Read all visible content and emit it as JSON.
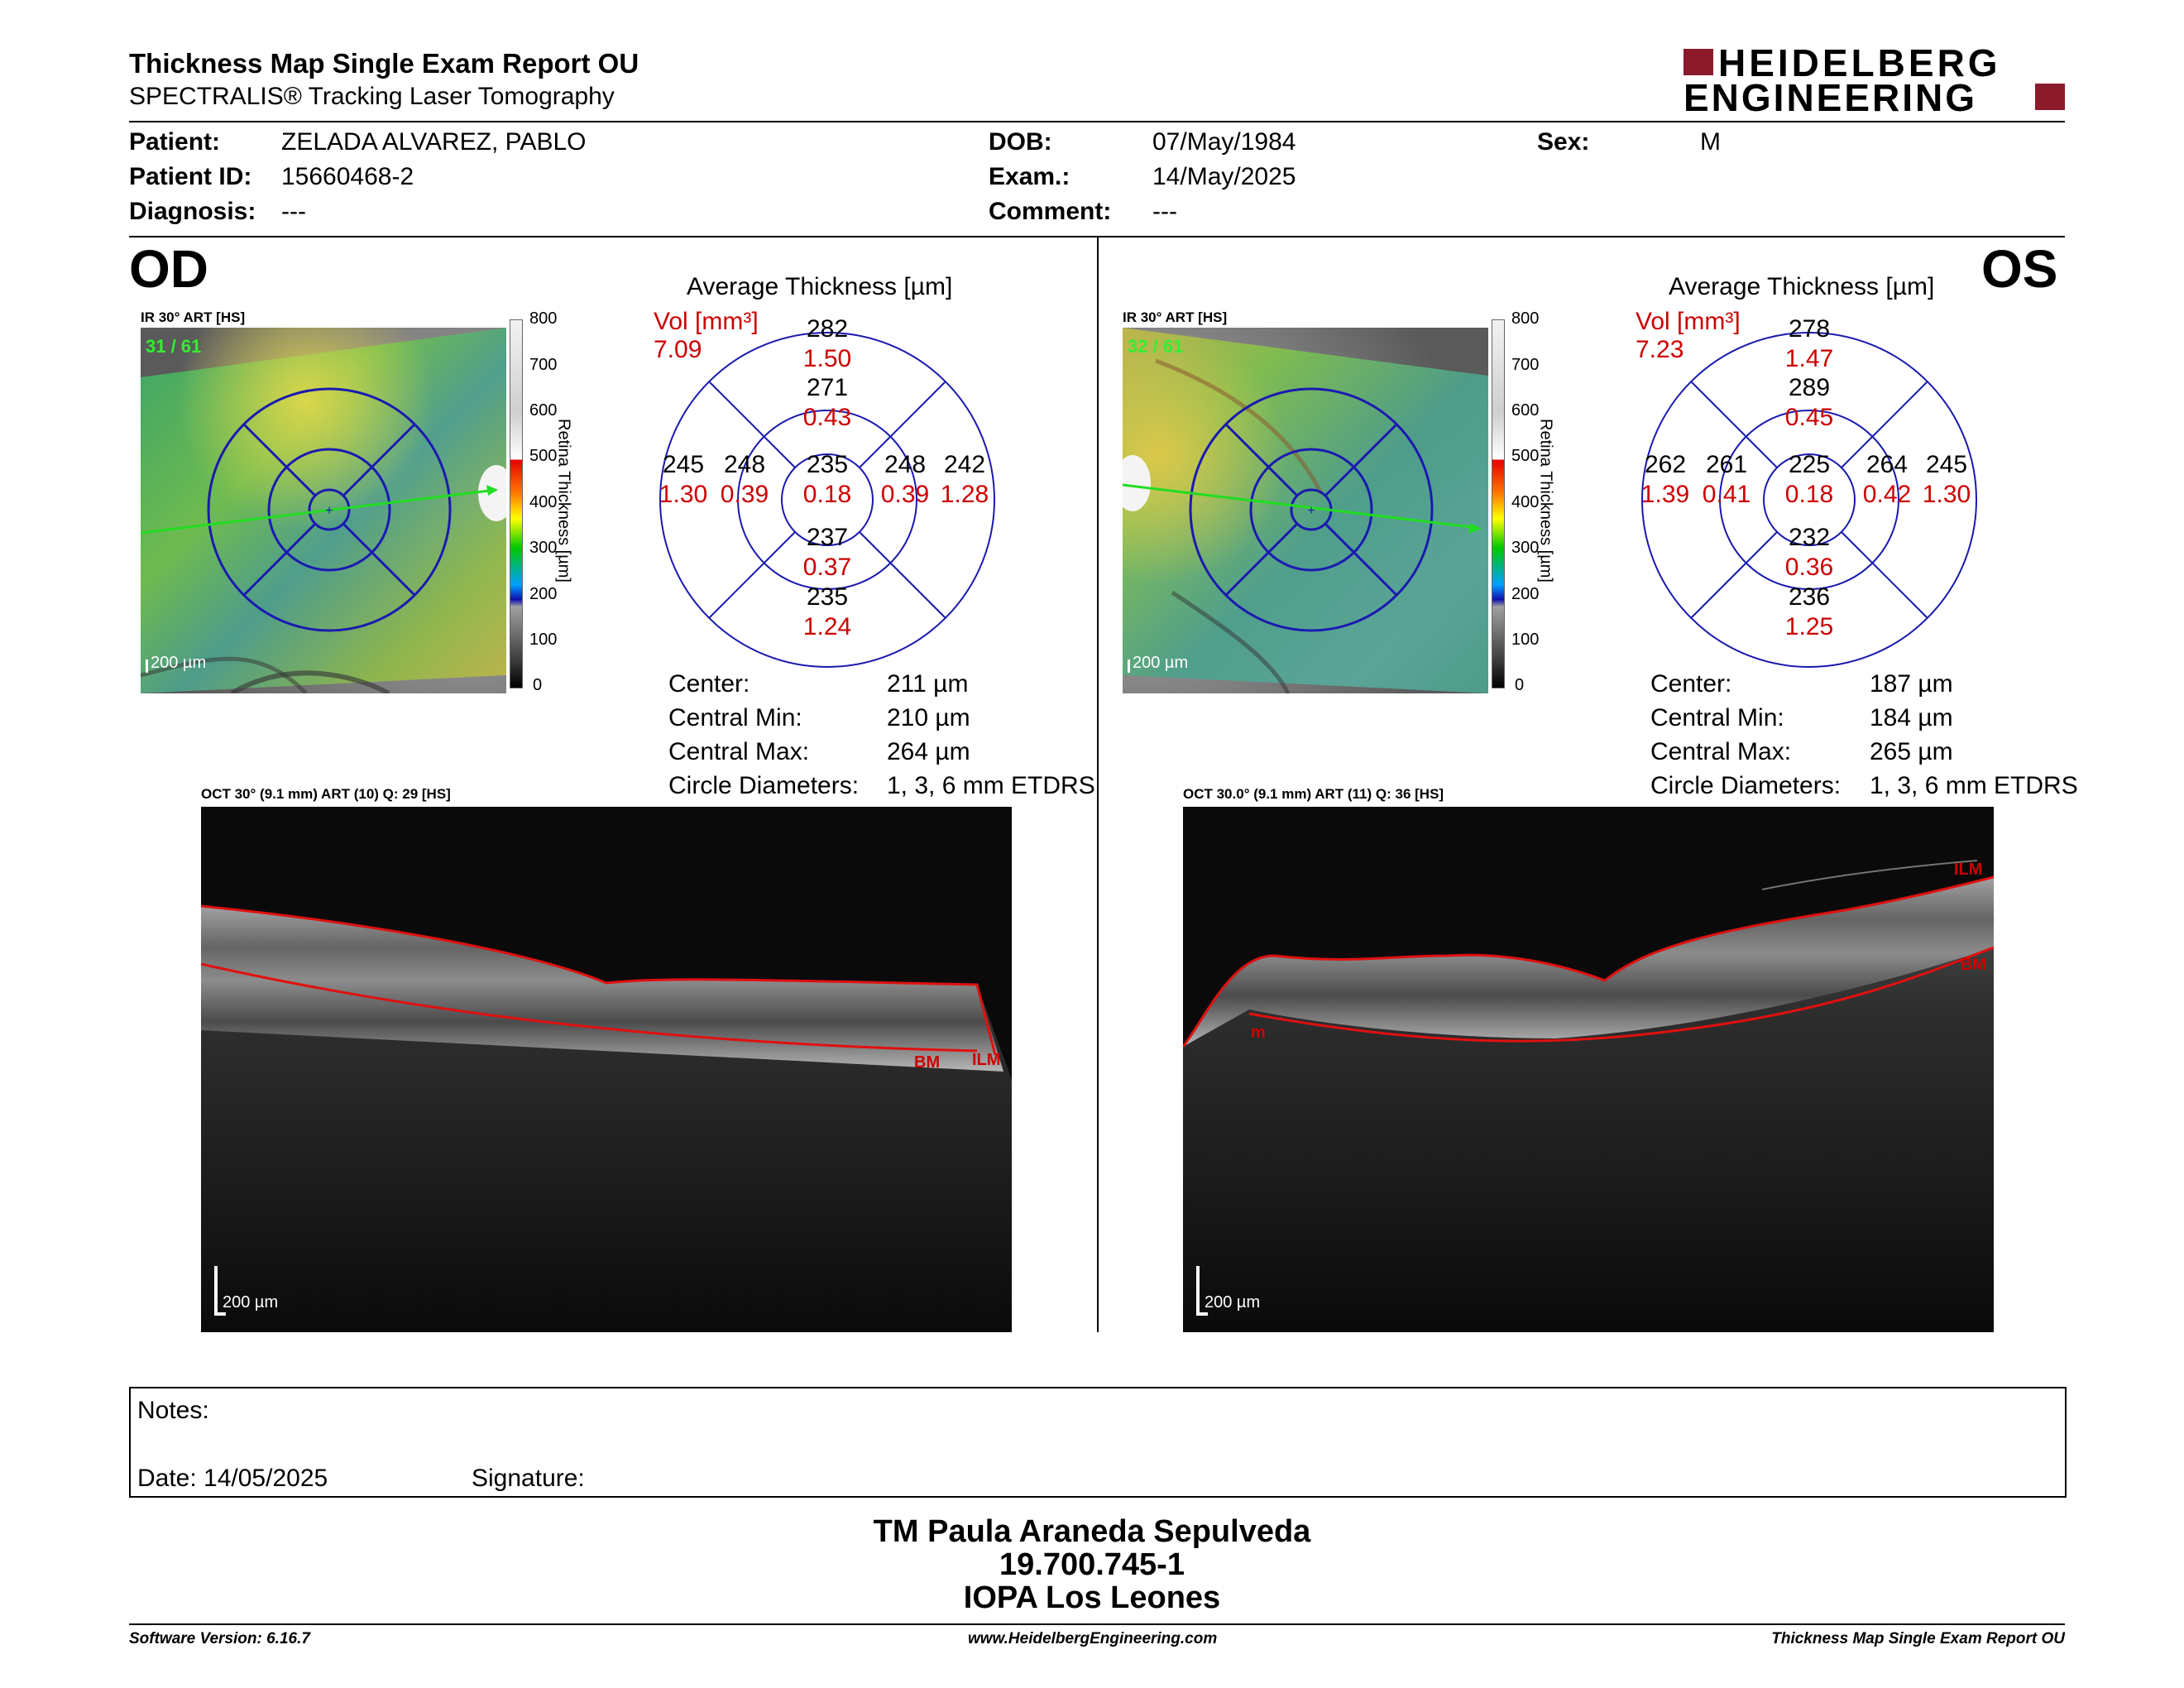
{
  "header": {
    "title": "Thickness Map Single Exam Report OU",
    "subtitle": "SPECTRALIS® Tracking Laser Tomography",
    "logo_line1": "HEIDELBERG",
    "logo_line2": "ENGINEERING"
  },
  "patient": {
    "patient_label": "Patient:",
    "patient_value": "ZELADA ALVAREZ, PABLO",
    "id_label": "Patient ID:",
    "id_value": "15660468-2",
    "diagnosis_label": "Diagnosis:",
    "diagnosis_value": "---",
    "dob_label": "DOB:",
    "dob_value": "07/May/1984",
    "exam_label": "Exam.:",
    "exam_value": "14/May/2025",
    "comment_label": "Comment:",
    "comment_value": "---",
    "sex_label": "Sex:",
    "sex_value": "M"
  },
  "colorbar": {
    "ticks": [
      "800",
      "700",
      "600",
      "500",
      "400",
      "300",
      "200",
      "100",
      "0"
    ],
    "label": "Retina Thickness [µm]"
  },
  "od": {
    "eye": "OD",
    "ir_label": "IR 30° ART [HS]",
    "ir_count": "31 / 61",
    "ir_scale": "200 µm",
    "avg_title": "Average Thickness [µm]",
    "vol_label": "Vol [mm³]",
    "vol_value": "7.09",
    "sectors": {
      "outer_top": {
        "t": "282",
        "v": "1.50"
      },
      "inner_top": {
        "t": "271",
        "v": "0.43"
      },
      "outer_left": {
        "t": "245",
        "v": "1.30"
      },
      "inner_left": {
        "t": "248",
        "v": "0.39"
      },
      "center": {
        "t": "235",
        "v": "0.18"
      },
      "inner_right": {
        "t": "248",
        "v": "0.39"
      },
      "outer_right": {
        "t": "242",
        "v": "1.28"
      },
      "inner_bottom": {
        "t": "237",
        "v": "0.37"
      },
      "outer_bottom": {
        "t": "235",
        "v": "1.24"
      }
    },
    "stats": [
      {
        "label": "Center:",
        "value": "211 µm"
      },
      {
        "label": "Central Min:",
        "value": "210 µm"
      },
      {
        "label": "Central Max:",
        "value": "264 µm"
      },
      {
        "label": "Circle Diameters:",
        "value": "1, 3, 6 mm ETDRS"
      }
    ],
    "oct_label": "OCT 30° (9.1 mm) ART (10) Q: 29 [HS]",
    "oct_scale": "200 µm",
    "oct_bm": "BM",
    "oct_ilm": "ILM"
  },
  "os": {
    "eye": "OS",
    "ir_label": "IR 30° ART [HS]",
    "ir_count": "32 / 61",
    "ir_scale": "200 µm",
    "avg_title": "Average Thickness [µm]",
    "vol_label": "Vol [mm³]",
    "vol_value": "7.23",
    "sectors": {
      "outer_top": {
        "t": "278",
        "v": "1.47"
      },
      "inner_top": {
        "t": "289",
        "v": "0.45"
      },
      "outer_left": {
        "t": "262",
        "v": "1.39"
      },
      "inner_left": {
        "t": "261",
        "v": "0.41"
      },
      "center": {
        "t": "225",
        "v": "0.18"
      },
      "inner_right": {
        "t": "264",
        "v": "0.42"
      },
      "outer_right": {
        "t": "245",
        "v": "1.30"
      },
      "inner_bottom": {
        "t": "232",
        "v": "0.36"
      },
      "outer_bottom": {
        "t": "236",
        "v": "1.25"
      }
    },
    "stats": [
      {
        "label": "Center:",
        "value": "187 µm"
      },
      {
        "label": "Central Min:",
        "value": "184 µm"
      },
      {
        "label": "Central Max:",
        "value": "265 µm"
      },
      {
        "label": "Circle Diameters:",
        "value": "1, 3, 6 mm ETDRS"
      }
    ],
    "oct_label": "OCT 30.0° (9.1 mm) ART (11) Q: 36 [HS]",
    "oct_scale": "200 µm",
    "oct_ilm": "ILM",
    "oct_bm": "BM",
    "oct_m": "m"
  },
  "notes": {
    "notes_label": "Notes:",
    "date_label": "Date: 14/05/2025",
    "signature_label": "Signature:"
  },
  "signer": {
    "name": "TM Paula Araneda Sepulveda",
    "rut": "19.700.745-1",
    "institution": "IOPA Los Leones"
  },
  "footer": {
    "software": "Software Version: 6.16.7",
    "website": "www.HeidelbergEngineering.com",
    "report": "Thickness Map Single Exam Report OU"
  },
  "colors": {
    "accent_red": "#cc0000",
    "grid_blue": "#1a1ab0",
    "logo_red": "#8b1a2b"
  }
}
